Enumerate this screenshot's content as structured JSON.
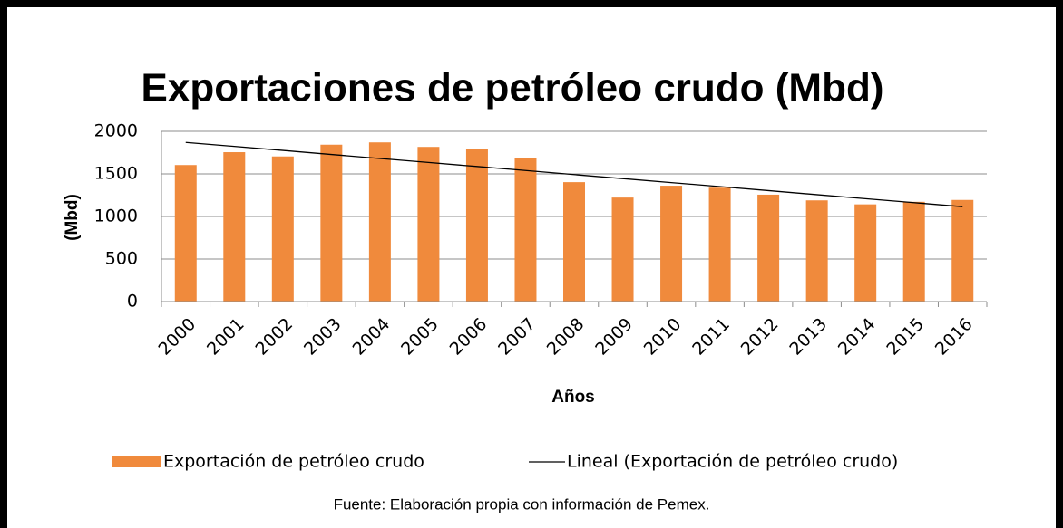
{
  "chart_data": {
    "type": "bar",
    "title": "Exportaciones de petróleo crudo (Mbd)",
    "x_label": "Años",
    "y_label": "(Mbd)",
    "note": "Fuente: Elaboración propia con información de Pemex.",
    "categories": [
      "2000",
      "2001",
      "2002",
      "2003",
      "2004",
      "2005",
      "2006",
      "2007",
      "2008",
      "2009",
      "2010",
      "2011",
      "2012",
      "2013",
      "2014",
      "2015",
      "2016"
    ],
    "series": [
      {
        "name": "Exportación de petróleo crudo",
        "color": "#f08a3c",
        "type": "bar",
        "values": [
          1604,
          1755,
          1705,
          1843,
          1870,
          1817,
          1793,
          1686,
          1403,
          1222,
          1361,
          1338,
          1256,
          1189,
          1142,
          1172,
          1194
        ]
      },
      {
        "name": "Lineal (Exportación de petróleo crudo)",
        "color": "#000000",
        "type": "line",
        "values": [
          1870,
          1823,
          1776,
          1728,
          1681,
          1634,
          1587,
          1540,
          1492,
          1445,
          1398,
          1351,
          1304,
          1256,
          1209,
          1162,
          1115
        ]
      }
    ],
    "ylim": [
      0,
      2000
    ],
    "yticks": [
      0,
      500,
      1000,
      1500,
      2000
    ],
    "grid": true
  }
}
